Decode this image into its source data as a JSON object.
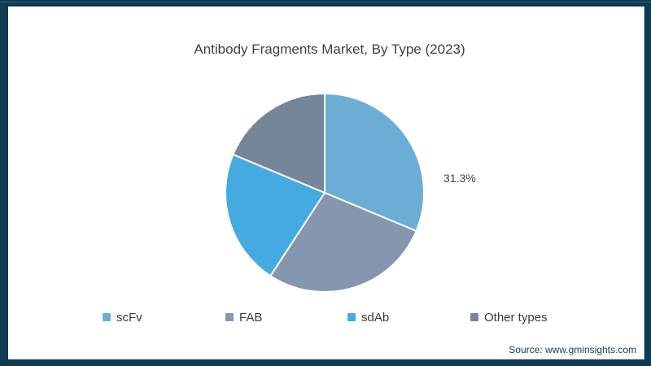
{
  "title": "Antibody Fragments Market, By Type (2023)",
  "source_note": "Source: www.gminsights.com",
  "colors": {
    "frame": "#0e3b52",
    "frame_accent": "#2e607b",
    "content_background": "#ffffff",
    "title_text": "#404040",
    "data_label_text": "#404040",
    "legend_text": "#3a3a3a",
    "source_text": "#123d52",
    "slice_separator": "#ffffff"
  },
  "chart_data": {
    "type": "pie",
    "title": "Antibody Fragments Market, By Type (2023)",
    "start_angle_deg": 0,
    "direction": "clockwise",
    "legend_position": "bottom",
    "slices": [
      {
        "label": "scFv",
        "value_pct": 31.3,
        "color": "#6cadd5"
      },
      {
        "label": "FAB",
        "value_pct": 27.9,
        "color": "#8497ae"
      },
      {
        "label": "sdAb",
        "value_pct": 22.1,
        "color": "#45aae1"
      },
      {
        "label": "Other types",
        "value_pct": 18.7,
        "color": "#75859a"
      }
    ],
    "data_labels": [
      {
        "slice": "scFv",
        "text": "31.3%"
      }
    ]
  }
}
